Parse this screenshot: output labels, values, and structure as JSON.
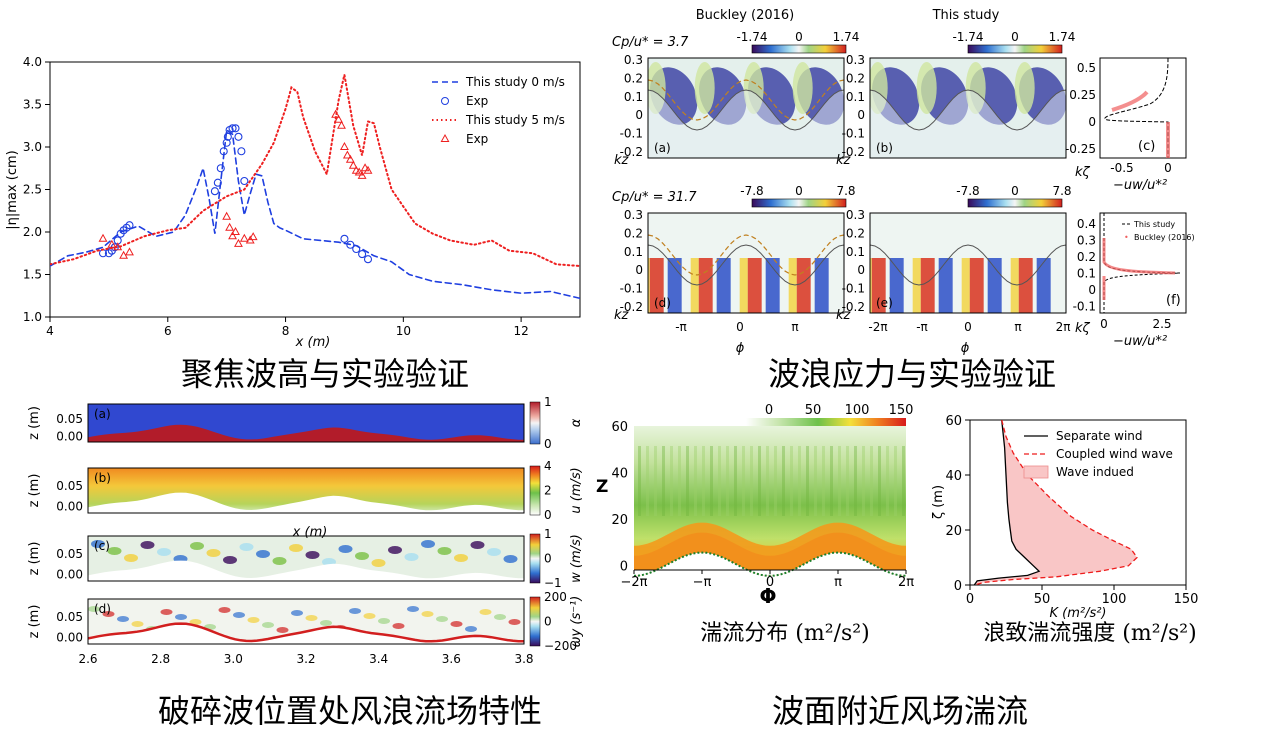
{
  "captions": {
    "focus_wave": "聚焦波高与实验验证",
    "wave_stress": "波浪应力与实验验证",
    "breaking": "破碎波位置处风浪流场特性",
    "near_surface": "波面附近风场湍流",
    "turb_dist": "湍流分布 (m²/s²)",
    "wave_turb": "浪致湍流强度 (m²/s²)"
  },
  "chart_data": [
    {
      "id": "focus",
      "type": "line",
      "xlabel": "x (m)",
      "ylabel": "|η|max (cm)",
      "xlim": [
        4,
        13
      ],
      "ylim": [
        1.0,
        4.0
      ],
      "xticks": [
        4,
        6,
        8,
        10,
        12
      ],
      "yticks": [
        1.0,
        1.5,
        2.0,
        2.5,
        3.0,
        3.5,
        4.0
      ],
      "legend_position": "top-right",
      "series": [
        {
          "name": "This study 0 m/s",
          "style": "dashed",
          "color": "#1f3fe0",
          "x": [
            4.0,
            4.3,
            4.6,
            4.9,
            5.2,
            5.5,
            5.8,
            6.1,
            6.3,
            6.5,
            6.6,
            6.7,
            6.8,
            6.9,
            7.0,
            7.1,
            7.2,
            7.3,
            7.4,
            7.5,
            7.6,
            7.7,
            7.8,
            7.9,
            8.0,
            8.3,
            8.6,
            8.9,
            9.2,
            9.5,
            9.8,
            10.1,
            10.5,
            11.0,
            11.5,
            12.0,
            12.5,
            13.0
          ],
          "y": [
            1.6,
            1.72,
            1.76,
            1.82,
            2.0,
            2.07,
            1.95,
            2.0,
            2.2,
            2.55,
            2.75,
            2.4,
            1.98,
            2.6,
            3.2,
            3.15,
            2.6,
            2.2,
            2.45,
            2.68,
            2.66,
            2.35,
            2.1,
            2.05,
            2.02,
            1.92,
            1.9,
            1.88,
            1.84,
            1.72,
            1.65,
            1.5,
            1.42,
            1.38,
            1.32,
            1.28,
            1.3,
            1.22
          ]
        },
        {
          "name": "Exp",
          "style": "circle",
          "color": "#1f3fe0",
          "x": [
            4.9,
            5.0,
            5.05,
            5.1,
            5.15,
            5.2,
            5.25,
            5.3,
            5.35,
            6.8,
            6.85,
            6.9,
            6.95,
            7.0,
            7.02,
            7.05,
            7.1,
            7.15,
            7.2,
            7.25,
            7.3,
            9.0,
            9.1,
            9.2,
            9.3,
            9.4
          ],
          "y": [
            1.75,
            1.75,
            1.78,
            1.82,
            1.9,
            1.98,
            2.02,
            2.05,
            2.08,
            2.48,
            2.58,
            2.75,
            2.95,
            3.05,
            3.12,
            3.2,
            3.22,
            3.22,
            3.12,
            2.95,
            2.6,
            1.92,
            1.85,
            1.8,
            1.74,
            1.68
          ]
        },
        {
          "name": "This study 5 m/s",
          "style": "dotted",
          "color": "#ee2020",
          "x": [
            4.0,
            4.4,
            4.8,
            5.2,
            5.6,
            6.0,
            6.3,
            6.6,
            7.0,
            7.3,
            7.6,
            7.8,
            8.0,
            8.1,
            8.2,
            8.3,
            8.5,
            8.7,
            8.9,
            9.0,
            9.15,
            9.3,
            9.4,
            9.5,
            9.6,
            9.8,
            10.0,
            10.2,
            10.5,
            10.8,
            11.2,
            11.5,
            11.8,
            12.2,
            12.6,
            13.0
          ],
          "y": [
            1.62,
            1.68,
            1.78,
            1.83,
            1.95,
            2.02,
            2.05,
            2.25,
            2.42,
            2.5,
            2.8,
            3.05,
            3.45,
            3.7,
            3.65,
            3.35,
            2.95,
            2.68,
            3.55,
            3.85,
            3.25,
            2.9,
            3.3,
            3.28,
            3.0,
            2.5,
            2.3,
            2.1,
            1.98,
            1.9,
            1.85,
            1.9,
            1.78,
            1.75,
            1.62,
            1.6
          ]
        },
        {
          "name": "Exp",
          "style": "triangle",
          "color": "#ee2020",
          "x": [
            4.9,
            5.05,
            5.15,
            5.25,
            5.35,
            7.0,
            7.05,
            7.1,
            7.15,
            7.2,
            7.3,
            7.4,
            7.45,
            8.85,
            8.9,
            8.95,
            9.0,
            9.05,
            9.1,
            9.15,
            9.2,
            9.25,
            9.3,
            9.35,
            9.4
          ],
          "y": [
            1.92,
            1.85,
            1.82,
            1.72,
            1.76,
            2.18,
            2.05,
            1.95,
            2.0,
            1.86,
            1.92,
            1.9,
            1.94,
            3.38,
            3.32,
            3.25,
            3.0,
            2.9,
            2.85,
            2.78,
            2.72,
            2.7,
            2.66,
            2.75,
            2.72
          ]
        }
      ]
    },
    {
      "id": "pressure",
      "type": "heatmap",
      "col_titles": [
        "Buckley (2016)",
        "This study"
      ],
      "row1_param": "Cp/u* = 3.7",
      "row2_param": "Cp/u* = 31.7",
      "cb1": [
        "-1.74",
        "0",
        "1.74"
      ],
      "cb2": [
        "-7.8",
        "0",
        "7.8"
      ],
      "panel_labels": [
        "(a)",
        "(b)",
        "(c)",
        "(d)",
        "(e)",
        "(f)"
      ],
      "y_ticks": [
        "0.3",
        "0.2",
        "0.1",
        "0",
        "-0.1",
        "-0.2"
      ],
      "y_label": "kz",
      "x_ticks_left": [
        "-π",
        "0",
        "π"
      ],
      "x_ticks_right": [
        "-2π",
        "-π",
        "0",
        "π",
        "2π"
      ],
      "x_label": "ϕ",
      "profile_c_yticks": [
        "0.5",
        "0.25",
        "0",
        "-0.25"
      ],
      "profile_c_xticks": [
        "-0.5",
        "0"
      ],
      "profile_f_yticks": [
        "0.4",
        "0.3",
        "0.2",
        "0.1",
        "0",
        "-0.1"
      ],
      "profile_f_xticks": [
        "0",
        "2.5"
      ],
      "profile_ylabel": "kζ",
      "profile_xlabel": "−uw/u*²",
      "profile_legend": [
        "This study",
        "Buckley (2016)"
      ]
    },
    {
      "id": "breaking",
      "type": "heatmap",
      "panel_labels": [
        "(a)",
        "(b)",
        "(c)",
        "(d)"
      ],
      "y_label": "z (m)",
      "y_ticks": [
        "0.05",
        "0.00"
      ],
      "x_label": "x (m)",
      "x_ticks": [
        "2.6",
        "2.8",
        "3.0",
        "3.2",
        "3.4",
        "3.6",
        "3.8"
      ],
      "colorbars": [
        {
          "ticks": [
            "1",
            "0"
          ],
          "label": "α"
        },
        {
          "ticks": [
            "4",
            "2",
            "0"
          ],
          "label": "u (m/s)"
        },
        {
          "ticks": [
            "1",
            "0",
            "−1"
          ],
          "label": "w (m/s)"
        },
        {
          "ticks": [
            "200",
            "0",
            "−200"
          ],
          "label": "ωy (s⁻¹)"
        }
      ]
    },
    {
      "id": "turbulence",
      "type": "heatmap",
      "cb_ticks": [
        "0",
        "50",
        "100",
        "150"
      ],
      "y_label": "Z",
      "y_ticks": [
        "60",
        "40",
        "20",
        "0"
      ],
      "x_label": "Φ",
      "x_ticks": [
        "−2π",
        "−π",
        "0",
        "π",
        "2π"
      ]
    },
    {
      "id": "wave_induced",
      "type": "line",
      "xlabel": "K (m²/s²)",
      "ylabel": "ζ (m)",
      "xlim": [
        0,
        150
      ],
      "ylim": [
        0,
        60
      ],
      "xticks": [
        0,
        50,
        100,
        150
      ],
      "yticks": [
        0,
        20,
        40,
        60
      ],
      "legend_position": "top-right",
      "series": [
        {
          "name": "Separate wind",
          "style": "solid",
          "color": "#000000",
          "x": [
            22,
            24,
            25,
            26,
            27,
            28,
            29,
            32,
            38,
            44,
            48,
            40,
            20,
            5,
            3
          ],
          "y": [
            60,
            50,
            40,
            30,
            24,
            20,
            16,
            13,
            10,
            7,
            5,
            3.5,
            2.5,
            1.5,
            0
          ]
        },
        {
          "name": "Coupled wind wave",
          "style": "dashed",
          "color": "#ee1c1c",
          "x": [
            22,
            25,
            30,
            40,
            55,
            70,
            85,
            100,
            112,
            116,
            110,
            90,
            60,
            30,
            10,
            3
          ],
          "y": [
            60,
            54,
            48,
            40,
            32,
            25,
            20,
            16,
            13,
            10,
            7,
            5,
            3,
            2,
            1,
            0
          ]
        },
        {
          "name": "Wave indued",
          "style": "fill",
          "color": "#f9c6c6"
        }
      ]
    }
  ]
}
